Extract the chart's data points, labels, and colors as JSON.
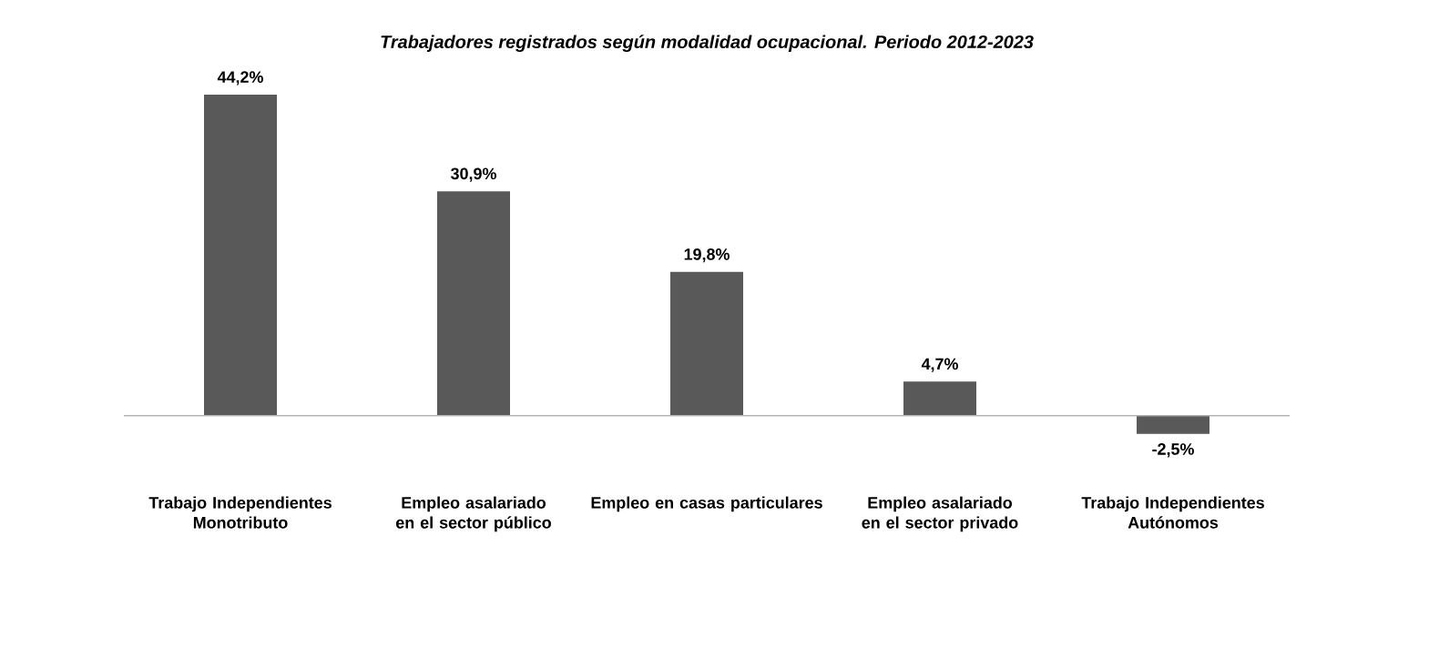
{
  "chart_data": {
    "type": "bar",
    "title": "Trabajadores registrados según modalidad ocupacional. Periodo 2012-2023",
    "categories": [
      "Trabajo Independientes Monotributo",
      "Empleo asalariado en el sector público",
      "Empleo en casas particulares",
      "Empleo asalariado en el sector privado",
      "Trabajo Independientes Autónomos"
    ],
    "values": [
      44.2,
      30.9,
      19.8,
      4.7,
      -2.5
    ],
    "value_labels": [
      "44,2%",
      "30,9%",
      "19,8%",
      "4,7%",
      "-2,5%"
    ],
    "color": "#595959"
  }
}
